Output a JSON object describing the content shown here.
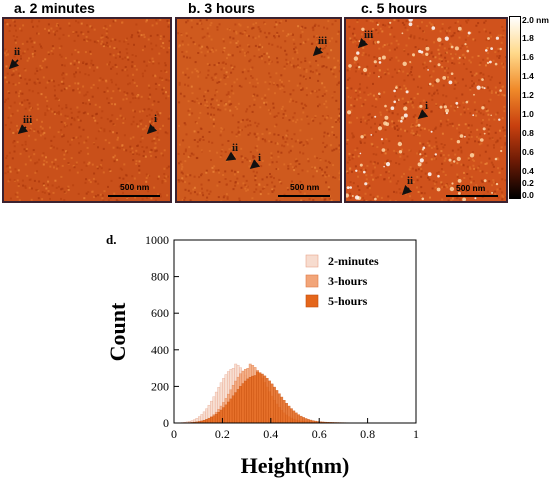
{
  "panels": [
    {
      "title": "a. 2 minutes",
      "scale_bar": "500 nm",
      "markers": [
        "ii",
        "iii",
        "i"
      ]
    },
    {
      "title": "b. 3 hours",
      "scale_bar": "500 nm",
      "markers": [
        "iii",
        "ii",
        "i"
      ]
    },
    {
      "title": "c. 5 hours",
      "scale_bar": "500 nm",
      "markers": [
        "iii",
        "i",
        "ii"
      ]
    }
  ],
  "colorbar": {
    "unit_top": "2.0 nm",
    "ticks": [
      "1.8",
      "1.6",
      "1.4",
      "1.2",
      "1.0",
      "0.8",
      "0.6",
      "0.4",
      "0.2",
      "0.0"
    ],
    "colors": [
      "#ffffff",
      "#ffd98a",
      "#f08a2a",
      "#c8400f",
      "#6b1a05",
      "#000000"
    ]
  },
  "chart_data": {
    "type": "histogram",
    "panel_label": "d.",
    "xlabel": "Height(nm)",
    "ylabel": "Count",
    "xlim": [
      0,
      1
    ],
    "ylim": [
      0,
      1000
    ],
    "xticks": [
      "0",
      "0.2",
      "0.4",
      "0.6",
      "0.8",
      "1"
    ],
    "yticks": [
      "0",
      "200",
      "400",
      "600",
      "800",
      "1000"
    ],
    "bin_width": 0.01,
    "series": [
      {
        "name": "2-minutes",
        "color": "#f7dccf",
        "edge": "#e9a48a",
        "peak_center": 0.25,
        "peak_count": 300,
        "spread": 0.07
      },
      {
        "name": "3-hours",
        "color": "#f2a579",
        "edge": "#e07a45",
        "peak_center": 0.31,
        "peak_count": 300,
        "spread": 0.075
      },
      {
        "name": "5-hours",
        "color": "#e4661b",
        "edge": "#c44e0c",
        "peak_center": 0.34,
        "peak_count": 260,
        "spread": 0.09
      }
    ]
  }
}
